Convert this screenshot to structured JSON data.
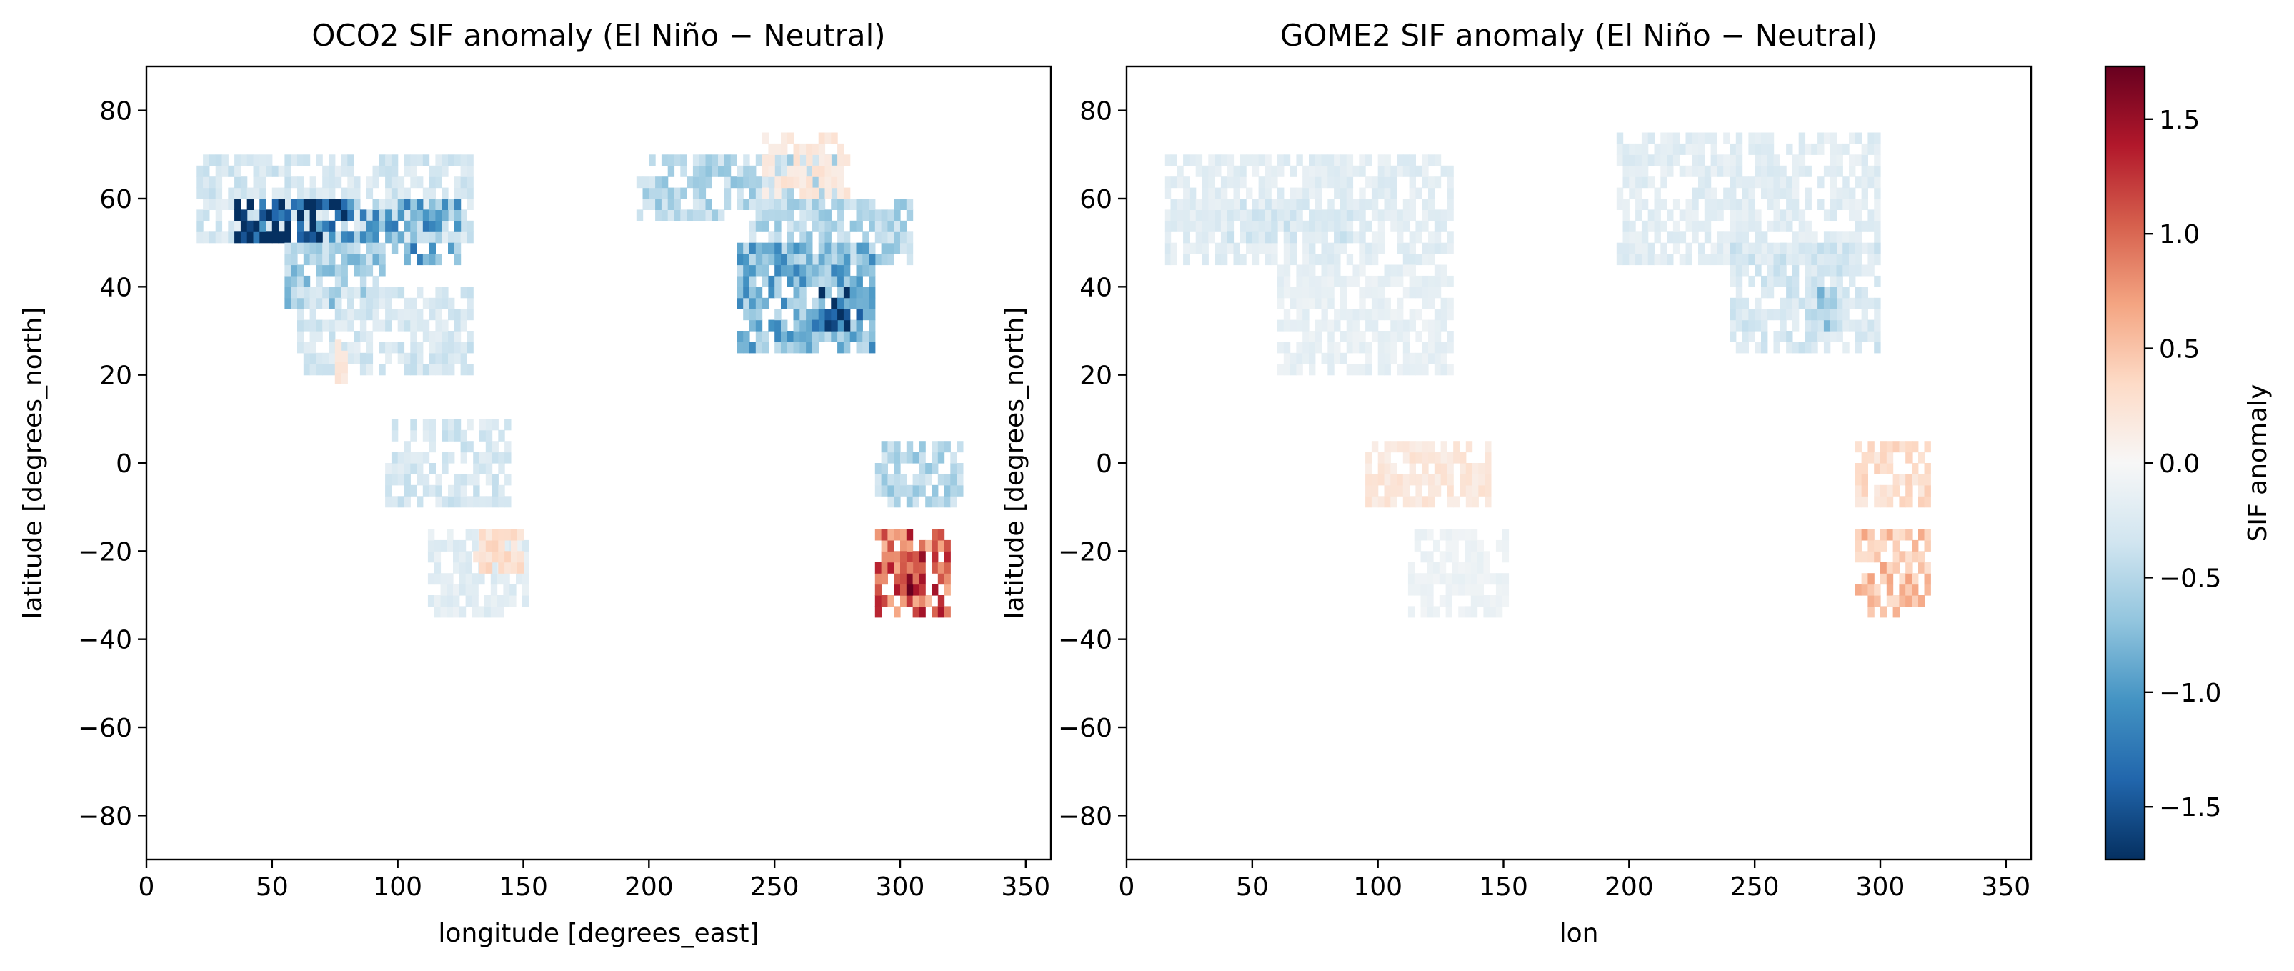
{
  "colorbar": {
    "label": "SIF anomaly",
    "vmin": -1.73,
    "vmax": 1.73,
    "ticks": [
      -1.5,
      -1.0,
      -0.5,
      0.0,
      0.5,
      1.0,
      1.5
    ],
    "tick_labels": [
      "−1.5",
      "−1.0",
      "−0.5",
      "0.0",
      "0.5",
      "1.0",
      "1.5"
    ],
    "colormap": "RdBu_r",
    "stops": [
      "#053061",
      "#2166ac",
      "#4393c3",
      "#92c5de",
      "#d1e5f0",
      "#f7f7f7",
      "#fddbc7",
      "#f4a582",
      "#d6604d",
      "#b2182b",
      "#67001f"
    ]
  },
  "chart_data": [
    {
      "type": "heatmap",
      "title": "OCO2 SIF anomaly (El Niño − Neutral)",
      "xlabel": "longitude [degrees_east]",
      "ylabel": "latitude [degrees_north]",
      "xlim": [
        0,
        360
      ],
      "ylim": [
        -90,
        90
      ],
      "xticks": [
        0,
        50,
        100,
        150,
        200,
        250,
        300,
        350
      ],
      "yticks": [
        80,
        60,
        40,
        20,
        0,
        -20,
        -40,
        -60,
        -80
      ],
      "ytick_labels": [
        "80",
        "60",
        "40",
        "20",
        "0",
        "−20",
        "−40",
        "−60",
        "−80"
      ],
      "regions": [
        {
          "lon": [
            20,
            130
          ],
          "lat": [
            50,
            70
          ],
          "value": -0.3
        },
        {
          "lon": [
            35,
            80
          ],
          "lat": [
            50,
            60
          ],
          "value": -1.6
        },
        {
          "lon": [
            80,
            125
          ],
          "lat": [
            45,
            58
          ],
          "value": -0.9
        },
        {
          "lon": [
            55,
            95
          ],
          "lat": [
            35,
            50
          ],
          "value": -0.6
        },
        {
          "lon": [
            60,
            130
          ],
          "lat": [
            20,
            40
          ],
          "value": -0.3
        },
        {
          "lon": [
            75,
            80
          ],
          "lat": [
            18,
            28
          ],
          "value": 0.2
        },
        {
          "lon": [
            95,
            145
          ],
          "lat": [
            -10,
            10
          ],
          "value": -0.3
        },
        {
          "lon": [
            112,
            150
          ],
          "lat": [
            -35,
            -15
          ],
          "value": -0.2
        },
        {
          "lon": [
            130,
            148
          ],
          "lat": [
            -25,
            -15
          ],
          "value": 0.3
        },
        {
          "lon": [
            195,
            275
          ],
          "lat": [
            55,
            70
          ],
          "value": -0.5
        },
        {
          "lon": [
            240,
            305
          ],
          "lat": [
            45,
            60
          ],
          "value": -0.5
        },
        {
          "lon": [
            235,
            290
          ],
          "lat": [
            25,
            48
          ],
          "value": -0.8
        },
        {
          "lon": [
            265,
            285
          ],
          "lat": [
            30,
            40
          ],
          "value": -1.5
        },
        {
          "lon": [
            245,
            280
          ],
          "lat": [
            60,
            75
          ],
          "value": 0.2
        },
        {
          "lon": [
            290,
            325
          ],
          "lat": [
            -10,
            5
          ],
          "value": -0.5
        },
        {
          "lon": [
            290,
            320
          ],
          "lat": [
            -35,
            -15
          ],
          "value": 1.0
        },
        {
          "lon": [
            300,
            310
          ],
          "lat": [
            -30,
            -20
          ],
          "value": 1.4
        }
      ]
    },
    {
      "type": "heatmap",
      "title": "GOME2 SIF anomaly (El Niño − Neutral)",
      "xlabel": "lon",
      "ylabel": "latitude [degrees_north]",
      "xlim": [
        0,
        360
      ],
      "ylim": [
        -90,
        90
      ],
      "xticks": [
        0,
        50,
        100,
        150,
        200,
        250,
        300,
        350
      ],
      "yticks": [
        80,
        60,
        40,
        20,
        0,
        -20,
        -40,
        -60,
        -80
      ],
      "ytick_labels": [
        "80",
        "60",
        "40",
        "20",
        "0",
        "−20",
        "−40",
        "−60",
        "−80"
      ],
      "regions": [
        {
          "lon": [
            15,
            130
          ],
          "lat": [
            45,
            70
          ],
          "value": -0.2
        },
        {
          "lon": [
            40,
            90
          ],
          "lat": [
            50,
            60
          ],
          "value": -0.3
        },
        {
          "lon": [
            60,
            130
          ],
          "lat": [
            20,
            45
          ],
          "value": -0.15
        },
        {
          "lon": [
            95,
            145
          ],
          "lat": [
            -10,
            5
          ],
          "value": 0.2
        },
        {
          "lon": [
            112,
            150
          ],
          "lat": [
            -35,
            -15
          ],
          "value": -0.1
        },
        {
          "lon": [
            195,
            300
          ],
          "lat": [
            45,
            75
          ],
          "value": -0.2
        },
        {
          "lon": [
            240,
            300
          ],
          "lat": [
            25,
            48
          ],
          "value": -0.3
        },
        {
          "lon": [
            270,
            285
          ],
          "lat": [
            30,
            40
          ],
          "value": -0.6
        },
        {
          "lon": [
            290,
            320
          ],
          "lat": [
            -10,
            5
          ],
          "value": 0.3
        },
        {
          "lon": [
            290,
            320
          ],
          "lat": [
            -35,
            -15
          ],
          "value": 0.5
        }
      ]
    }
  ]
}
